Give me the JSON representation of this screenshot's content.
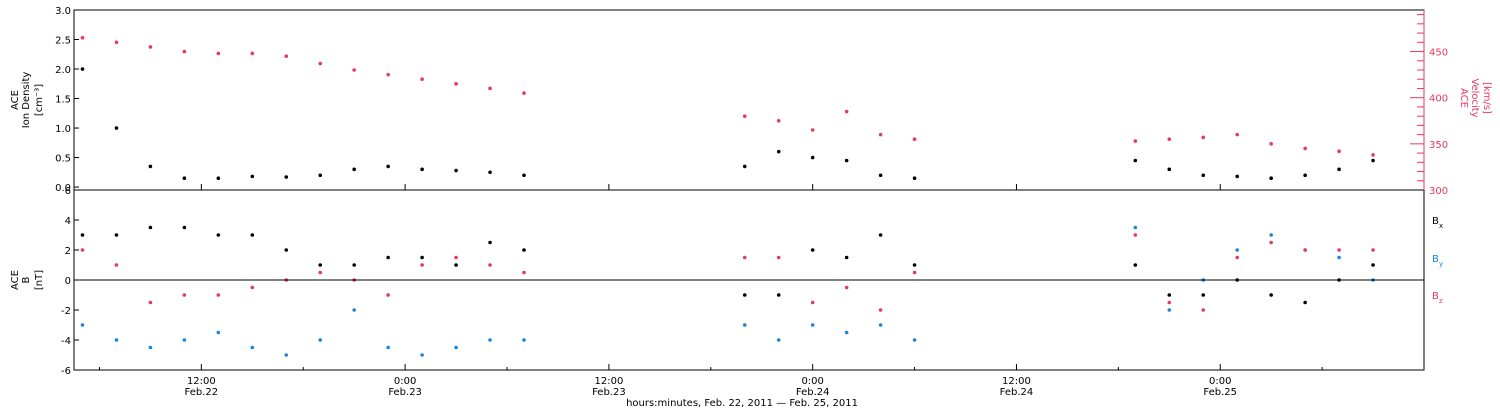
{
  "figure": {
    "xlabel": "hours:minutes, Feb. 22, 2011 — Feb. 25, 2011",
    "x_ticks": [
      {
        "time": "12:00",
        "date": "Feb.22"
      },
      {
        "time": "0:00",
        "date": "Feb.23"
      },
      {
        "time": "12:00",
        "date": "Feb.23"
      },
      {
        "time": "0:00",
        "date": "Feb.24"
      },
      {
        "time": "12:00",
        "date": "Feb.24"
      },
      {
        "time": "0:00",
        "date": "Feb.25"
      }
    ],
    "colors": {
      "axis": "#000000",
      "density": "#000000",
      "velocity": "#e6395f",
      "bx": "#000000",
      "by": "#1a85e0",
      "bz": "#e6395f"
    }
  },
  "chart_data": [
    {
      "type": "scatter",
      "title": "",
      "x_axis": "hours since 00:00 Feb. 22, 2011",
      "xlim": [
        4.5,
        84
      ],
      "data_gaps_hours": [
        [
          31.5,
          43.5
        ],
        [
          54.3,
          67.2
        ]
      ],
      "left_axis": {
        "label_lines": [
          "ACE",
          "Ion Density"
        ],
        "unit": "[cm⁻³]",
        "ylim": [
          -0.05,
          3.0
        ],
        "ticks": [
          "0.0",
          "0.5",
          "1.0",
          "1.5",
          "2.0",
          "2.5",
          "3.0"
        ]
      },
      "right_axis": {
        "label_lines": [
          "ACE",
          "Velocity"
        ],
        "unit": "[km/s]",
        "ylim": [
          300,
          495
        ],
        "ticks": [
          "300",
          "350",
          "400",
          "450"
        ]
      },
      "series": [
        {
          "axis": "left",
          "x": [
            5,
            7,
            9,
            11,
            13,
            15,
            17,
            19,
            21,
            23,
            25,
            27,
            29,
            31,
            44,
            46,
            48,
            50,
            52,
            54,
            67,
            69,
            71,
            73,
            75,
            77,
            79,
            81
          ],
          "y": [
            2.0,
            1.0,
            0.35,
            0.15,
            0.15,
            0.18,
            0.17,
            0.2,
            0.3,
            0.35,
            0.3,
            0.28,
            0.25,
            0.2,
            0.35,
            0.6,
            0.5,
            0.45,
            0.2,
            0.15,
            0.45,
            0.3,
            0.2,
            0.18,
            0.15,
            0.2,
            0.3,
            0.45
          ]
        },
        {
          "axis": "right",
          "x": [
            5,
            7,
            9,
            11,
            13,
            15,
            17,
            19,
            21,
            23,
            25,
            27,
            29,
            31,
            44,
            46,
            48,
            50,
            52,
            54,
            67,
            69,
            71,
            73,
            75,
            77,
            79,
            81
          ],
          "y": [
            465,
            460,
            455,
            450,
            448,
            448,
            445,
            437,
            430,
            425,
            420,
            415,
            410,
            405,
            380,
            375,
            365,
            385,
            360,
            355,
            353,
            355,
            357,
            360,
            350,
            345,
            342,
            338
          ]
        }
      ]
    },
    {
      "type": "scatter",
      "title": "",
      "x_axis": "hours since 00:00 Feb. 22, 2011",
      "xlim": [
        4.5,
        84
      ],
      "data_gaps_hours": [
        [
          31.5,
          43.5
        ],
        [
          54.3,
          67.2
        ]
      ],
      "y_axis": {
        "label_lines": [
          "ACE",
          "B"
        ],
        "unit": "[nT]",
        "ylim": [
          -6,
          6
        ],
        "ticks": [
          "-6",
          "-4",
          "-2",
          "0",
          "2",
          "4",
          "6"
        ]
      },
      "legend": {
        "position": "right",
        "entries": [
          "B",
          "B",
          "B"
        ],
        "subscripts": [
          "x",
          "y",
          "z"
        ]
      },
      "series": [
        {
          "name": "Bx",
          "x": [
            5,
            7,
            9,
            11,
            13,
            15,
            17,
            19,
            21,
            23,
            25,
            27,
            29,
            31,
            44,
            46,
            48,
            50,
            52,
            54,
            67,
            69,
            71,
            73,
            75,
            77,
            79,
            81
          ],
          "y": [
            3,
            3,
            3.5,
            3.5,
            3,
            3,
            2,
            1,
            1,
            1.5,
            1.5,
            1,
            2.5,
            2,
            -1,
            -1,
            2,
            1.5,
            3,
            1,
            1,
            -1,
            -1,
            0,
            -1,
            -1.5,
            0,
            1
          ]
        },
        {
          "name": "By",
          "x": [
            5,
            7,
            9,
            11,
            13,
            15,
            17,
            19,
            21,
            23,
            25,
            27,
            29,
            31,
            44,
            46,
            48,
            50,
            52,
            54,
            67,
            69,
            71,
            73,
            75,
            77,
            79,
            81
          ],
          "y": [
            -3,
            -4,
            -4.5,
            -4,
            -3.5,
            -4.5,
            -5,
            -4,
            -2,
            -4.5,
            -5,
            -4.5,
            -4,
            -4,
            -3,
            -4,
            -3,
            -3.5,
            -3,
            -4,
            3.5,
            -2,
            0,
            2,
            3,
            2,
            1.5,
            0
          ]
        },
        {
          "name": "Bz",
          "x": [
            5,
            7,
            9,
            11,
            13,
            15,
            17,
            19,
            21,
            23,
            25,
            27,
            29,
            31,
            44,
            46,
            48,
            50,
            52,
            54,
            67,
            69,
            71,
            73,
            75,
            77,
            79,
            81
          ],
          "y": [
            2,
            1,
            -1.5,
            -1,
            -1,
            -0.5,
            0,
            0.5,
            0,
            -1,
            1,
            1.5,
            1,
            0.5,
            1.5,
            1.5,
            -1.5,
            -0.5,
            -2,
            0.5,
            3,
            -1.5,
            -2,
            1.5,
            2.5,
            2,
            2,
            2
          ]
        }
      ]
    }
  ]
}
